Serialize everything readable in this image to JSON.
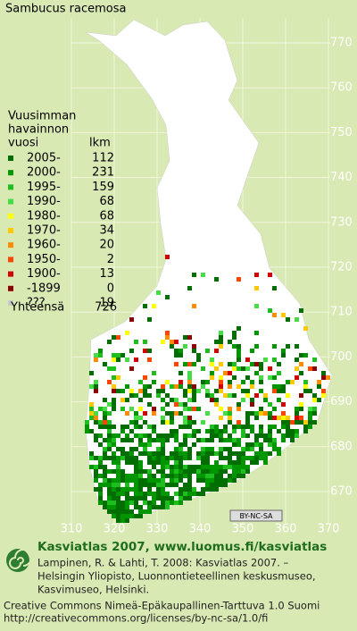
{
  "header": {
    "title": "Sambucus racemosa"
  },
  "legend": {
    "heading": [
      "Vuusimman",
      "havainnon",
      "vuosi"
    ],
    "count_heading": "lkm",
    "rows": [
      {
        "label": "2005-",
        "count": 112,
        "color": "#006e00"
      },
      {
        "label": "2000-",
        "count": 231,
        "color": "#009600"
      },
      {
        "label": "1995-",
        "count": 159,
        "color": "#1ebe1e"
      },
      {
        "label": "1990-",
        "count": 68,
        "color": "#46dc46"
      },
      {
        "label": "1980-",
        "count": 68,
        "color": "#ffff00"
      },
      {
        "label": "1970-",
        "count": 34,
        "color": "#ffc800"
      },
      {
        "label": "1960-",
        "count": 20,
        "color": "#ff8c00"
      },
      {
        "label": "1950-",
        "count": 2,
        "color": "#ff4600"
      },
      {
        "label": "1900-",
        "count": 13,
        "color": "#d20000"
      },
      {
        "label": "-1899",
        "count": 0,
        "color": "#8c0000"
      },
      {
        "label": "???",
        "count": 19,
        "color": "#c8c8c8"
      }
    ],
    "total_label": "Yhteensä",
    "total": 726
  },
  "map": {
    "xticks": [
      310,
      320,
      330,
      340,
      350,
      360,
      370
    ],
    "yticks": [
      770,
      760,
      750,
      740,
      730,
      720,
      710,
      700,
      690,
      680,
      670
    ],
    "license_badge": "BY-NC-SA"
  },
  "footer": {
    "brand": "Kasviatlas 2007, www.luomus.fi/kasviatlas",
    "citation": [
      "Lampinen, R. & Lahti, T. 2008: Kasviatlas 2007. –",
      "Helsingin Yliopisto, Luonnontieteellinen keskusmuseo,",
      "Kasvimuseo, Helsinki."
    ],
    "license": [
      "Creative Commons Nimeä-Epäkaupallinen-Tarttuva 1.0 Suomi",
      "http://creativecommons.org/licenses/by-nc-sa/1.0/fi"
    ]
  }
}
